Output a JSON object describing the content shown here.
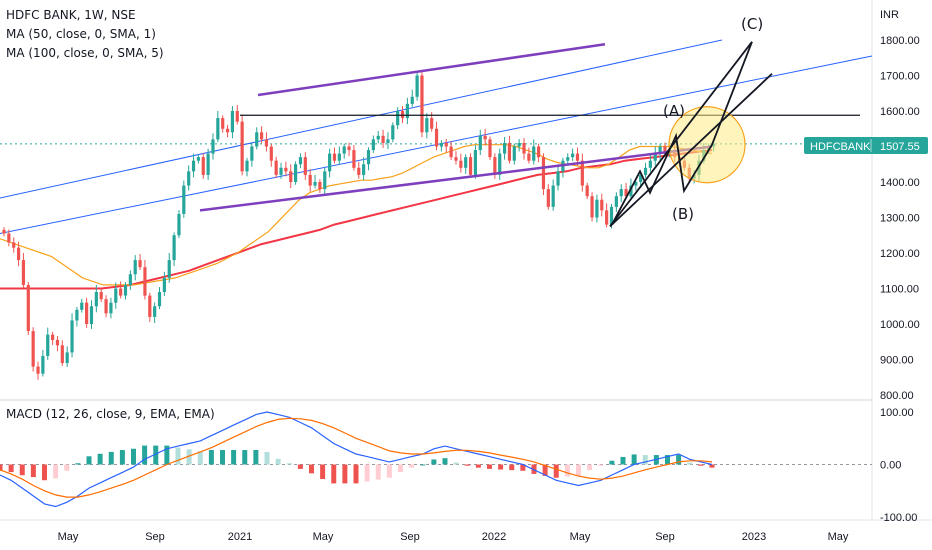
{
  "legend": {
    "title": "HDFC BANK, 1W, NSE",
    "ma50": "MA (50, close, 0, SMA, 1)",
    "ma100": "MA (100, close, 0, SMA, 5)",
    "macd": "MACD (12, 26, close, 9, EMA, EMA)"
  },
  "price_tag": {
    "symbol": "HDFCBANK",
    "value": "1507.55",
    "bg": "#26a69a"
  },
  "colors": {
    "up": "#26a69a",
    "down": "#ef5350",
    "ma50": "#f7a21b",
    "ma100": "#f23645",
    "channel": "#2962ff",
    "trend": "#7e3fbf",
    "macd": "#2962ff",
    "signal": "#ff6d00",
    "hist_up": "#26a69a",
    "hist_up_weak": "#b2dfdb",
    "hist_dn": "#ef5350",
    "hist_dn_weak": "#ffcdd2",
    "circle": "#ffeb84"
  },
  "chart_data": [
    {
      "type": "candlestick",
      "title": "HDFC BANK, 1W, NSE",
      "ylabel": "INR",
      "x_ticks": [
        "May",
        "Sep",
        "2021",
        "May",
        "Sep",
        "2022",
        "May",
        "Sep",
        "2023",
        "May"
      ],
      "y_ticks": [
        "800.00",
        "900.00",
        "1000.00",
        "1100.00",
        "1200.00",
        "1300.00",
        "1400.00",
        "1500.00",
        "1600.00",
        "1700.00",
        "1800.00"
      ],
      "ylim": [
        780,
        1880
      ],
      "last_price": 1507.55,
      "closes": [
        1255,
        1230,
        1215,
        1180,
        1110,
        980,
        880,
        860,
        910,
        970,
        955,
        940,
        890,
        920,
        1010,
        1040,
        1060,
        1000,
        1050,
        1090,
        1070,
        1030,
        1060,
        1100,
        1080,
        1110,
        1140,
        1180,
        1160,
        1080,
        1020,
        1050,
        1090,
        1130,
        1180,
        1250,
        1310,
        1390,
        1430,
        1460,
        1470,
        1420,
        1480,
        1520,
        1580,
        1550,
        1540,
        1600,
        1570,
        1430,
        1460,
        1500,
        1540,
        1520,
        1500,
        1460,
        1420,
        1440,
        1430,
        1400,
        1450,
        1470,
        1420,
        1390,
        1400,
        1380,
        1430,
        1480,
        1460,
        1480,
        1500,
        1490,
        1440,
        1420,
        1450,
        1490,
        1520,
        1530,
        1510,
        1520,
        1560,
        1600,
        1580,
        1620,
        1640,
        1700,
        1540,
        1580,
        1550,
        1500,
        1510,
        1500,
        1470,
        1460,
        1440,
        1470,
        1420,
        1490,
        1530,
        1520,
        1470,
        1420,
        1480,
        1510,
        1460,
        1500,
        1510,
        1480,
        1460,
        1500,
        1470,
        1380,
        1330,
        1390,
        1430,
        1460,
        1470,
        1480,
        1460,
        1390,
        1360,
        1300,
        1350,
        1320,
        1280,
        1330,
        1360,
        1380,
        1360,
        1390,
        1400,
        1420,
        1440,
        1460,
        1480,
        1500,
        1480,
        1490,
        1470,
        1460,
        1440,
        1410,
        1420,
        1460,
        1490,
        1500,
        1507.55
      ],
      "ma50": [
        1240,
        1230,
        1220,
        1210,
        1200,
        1190,
        1170,
        1150,
        1130,
        1120,
        1110,
        1110,
        1110,
        1110,
        1115,
        1120,
        1125,
        1130,
        1140,
        1150,
        1160,
        1170,
        1185,
        1200,
        1220,
        1240,
        1260,
        1290,
        1320,
        1350,
        1370,
        1380,
        1390,
        1395,
        1400,
        1405,
        1405,
        1410,
        1415,
        1425,
        1440,
        1455,
        1470,
        1480,
        1490,
        1500,
        1505,
        1505,
        1505,
        1505,
        1500,
        1490,
        1480,
        1465,
        1455,
        1450,
        1445,
        1440,
        1440,
        1450,
        1470,
        1490,
        1500,
        1500,
        1500,
        1500,
        1495,
        1490,
        1485,
        1480
      ],
      "ma100": [
        1100,
        1100,
        1100,
        1100,
        1100,
        1100,
        1100,
        1100,
        1105,
        1110,
        1120,
        1130,
        1140,
        1150,
        1165,
        1180,
        1195,
        1210,
        1225,
        1235,
        1245,
        1255,
        1265,
        1280,
        1290,
        1300,
        1310,
        1320,
        1330,
        1340,
        1350,
        1360,
        1370,
        1380,
        1390,
        1400,
        1410,
        1420,
        1425,
        1430,
        1440,
        1445,
        1450,
        1460,
        1465,
        1470,
        1475,
        1480,
        1485,
        1490
      ],
      "macd_label": "MACD (12, 26, close, 9, EMA, EMA)",
      "macd_ticks": [
        "100.00",
        "0.00",
        "-100.00"
      ],
      "macd_ylim": [
        -110,
        110
      ],
      "macd": [
        -20,
        -30,
        -45,
        -60,
        -75,
        -80,
        -72,
        -60,
        -45,
        -35,
        -25,
        -15,
        -5,
        10,
        20,
        30,
        35,
        40,
        45,
        55,
        65,
        75,
        85,
        95,
        100,
        95,
        90,
        80,
        70,
        55,
        40,
        30,
        20,
        15,
        10,
        5,
        10,
        15,
        20,
        30,
        35,
        30,
        25,
        20,
        15,
        10,
        5,
        0,
        -10,
        -20,
        -30,
        -35,
        -40,
        -35,
        -30,
        -20,
        -10,
        0,
        5,
        10,
        15,
        20,
        10,
        5,
        0
      ],
      "signal": [
        -10,
        -18,
        -28,
        -40,
        -50,
        -58,
        -62,
        -62,
        -58,
        -52,
        -45,
        -38,
        -30,
        -20,
        -10,
        0,
        8,
        16,
        24,
        32,
        42,
        52,
        62,
        72,
        80,
        86,
        88,
        87,
        84,
        78,
        70,
        60,
        50,
        42,
        34,
        26,
        22,
        20,
        20,
        22,
        25,
        27,
        27,
        25,
        22,
        18,
        14,
        10,
        5,
        -2,
        -9,
        -16,
        -22,
        -26,
        -28,
        -26,
        -22,
        -16,
        -10,
        -5,
        0,
        5,
        7,
        7,
        5
      ]
    }
  ],
  "annotations": {
    "wave_a": "(A)",
    "wave_b": "(B)",
    "wave_c": "(C)"
  }
}
